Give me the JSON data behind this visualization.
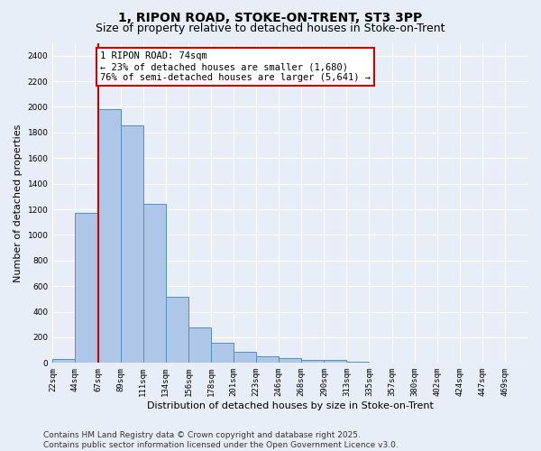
{
  "title_line1": "1, RIPON ROAD, STOKE-ON-TRENT, ST3 3PP",
  "title_line2": "Size of property relative to detached houses in Stoke-on-Trent",
  "xlabel": "Distribution of detached houses by size in Stoke-on-Trent",
  "ylabel": "Number of detached properties",
  "bar_values": [
    30,
    1175,
    1980,
    1855,
    1240,
    515,
    275,
    155,
    90,
    50,
    40,
    25,
    20,
    10,
    5,
    5,
    5,
    5,
    5,
    5
  ],
  "categories": [
    "22sqm",
    "44sqm",
    "67sqm",
    "89sqm",
    "111sqm",
    "134sqm",
    "156sqm",
    "178sqm",
    "201sqm",
    "223sqm",
    "246sqm",
    "268sqm",
    "290sqm",
    "313sqm",
    "335sqm",
    "357sqm",
    "380sqm",
    "402sqm",
    "424sqm",
    "447sqm",
    "469sqm"
  ],
  "bar_color": "#aec6e8",
  "bar_edge_color": "#4f8fc0",
  "background_color": "#e8eef7",
  "grid_color": "#ffffff",
  "vline_color": "#cc0000",
  "annotation_text": "1 RIPON ROAD: 74sqm\n← 23% of detached houses are smaller (1,680)\n76% of semi-detached houses are larger (5,641) →",
  "annotation_box_color": "#cc0000",
  "annotation_bg": "#ffffff",
  "ylim": [
    0,
    2500
  ],
  "yticks": [
    0,
    200,
    400,
    600,
    800,
    1000,
    1200,
    1400,
    1600,
    1800,
    2000,
    2200,
    2400
  ],
  "footer_line1": "Contains HM Land Registry data © Crown copyright and database right 2025.",
  "footer_line2": "Contains public sector information licensed under the Open Government Licence v3.0.",
  "title_fontsize": 10,
  "subtitle_fontsize": 9,
  "axis_label_fontsize": 8,
  "tick_fontsize": 6.5,
  "annotation_fontsize": 7.5,
  "footer_fontsize": 6.5
}
